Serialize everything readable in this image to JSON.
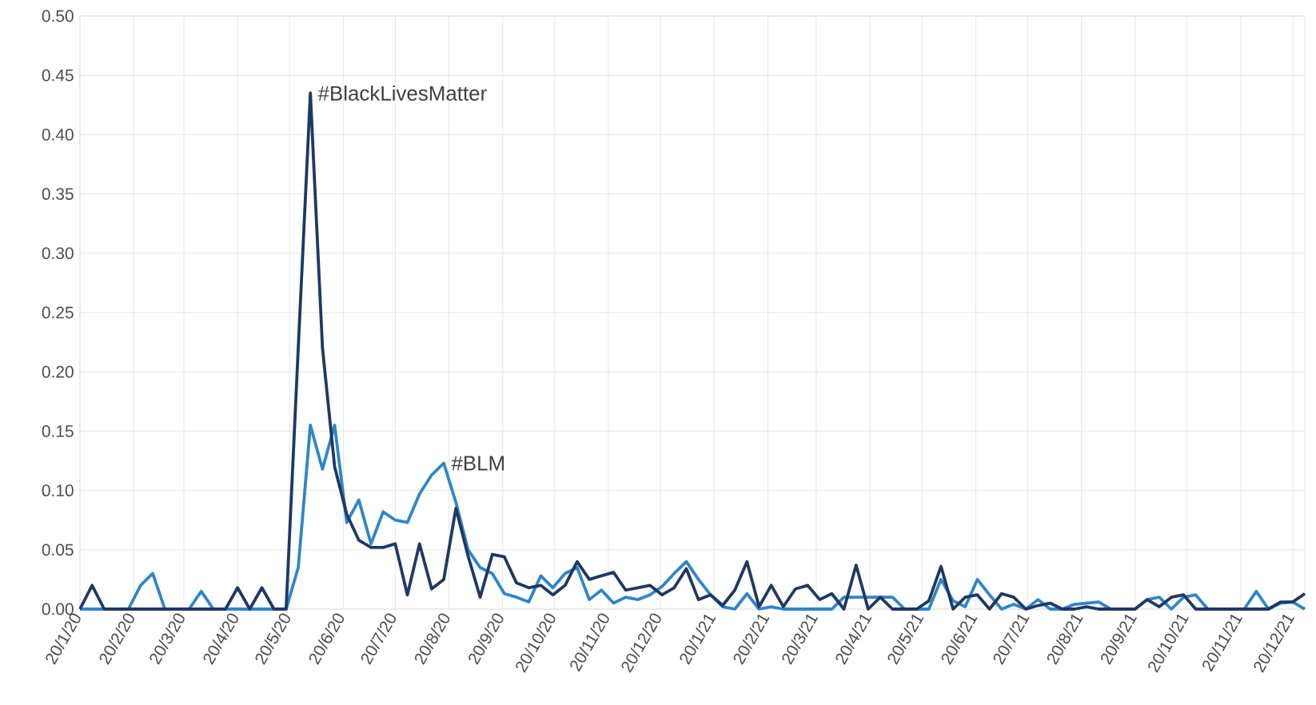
{
  "chart_data": {
    "type": "line",
    "x": [
      "2020-01-20",
      "2020-01-27",
      "2020-02-03",
      "2020-02-10",
      "2020-02-17",
      "2020-02-24",
      "2020-03-02",
      "2020-03-09",
      "2020-03-16",
      "2020-03-23",
      "2020-03-30",
      "2020-04-06",
      "2020-04-13",
      "2020-04-20",
      "2020-04-27",
      "2020-05-04",
      "2020-05-11",
      "2020-05-18",
      "2020-05-25",
      "2020-06-01",
      "2020-06-08",
      "2020-06-15",
      "2020-06-22",
      "2020-06-29",
      "2020-07-06",
      "2020-07-13",
      "2020-07-20",
      "2020-07-27",
      "2020-08-03",
      "2020-08-10",
      "2020-08-17",
      "2020-08-24",
      "2020-08-31",
      "2020-09-07",
      "2020-09-14",
      "2020-09-21",
      "2020-09-28",
      "2020-10-05",
      "2020-10-12",
      "2020-10-19",
      "2020-10-26",
      "2020-11-02",
      "2020-11-09",
      "2020-11-16",
      "2020-11-23",
      "2020-11-30",
      "2020-12-07",
      "2020-12-14",
      "2020-12-21",
      "2020-12-28",
      "2021-01-04",
      "2021-01-11",
      "2021-01-18",
      "2021-01-25",
      "2021-02-01",
      "2021-02-08",
      "2021-02-15",
      "2021-02-22",
      "2021-03-01",
      "2021-03-08",
      "2021-03-15",
      "2021-03-22",
      "2021-03-29",
      "2021-04-05",
      "2021-04-12",
      "2021-04-19",
      "2021-04-26",
      "2021-05-03",
      "2021-05-10",
      "2021-05-17",
      "2021-05-24",
      "2021-05-31",
      "2021-06-07",
      "2021-06-14",
      "2021-06-21",
      "2021-06-28",
      "2021-07-05",
      "2021-07-12",
      "2021-07-19",
      "2021-07-26",
      "2021-08-02",
      "2021-08-09",
      "2021-08-16",
      "2021-08-23",
      "2021-08-30",
      "2021-09-06",
      "2021-09-13",
      "2021-09-20",
      "2021-09-27",
      "2021-10-04",
      "2021-10-11",
      "2021-10-18",
      "2021-10-25",
      "2021-11-01",
      "2021-11-08",
      "2021-11-15",
      "2021-11-22",
      "2021-11-29",
      "2021-12-06",
      "2021-12-13",
      "2021-12-20",
      "2021-12-27"
    ],
    "series": [
      {
        "name": "#BLM",
        "color": "#2e86c8",
        "values": [
          0,
          0,
          0,
          0,
          0,
          0.02,
          0.03,
          0,
          0,
          0,
          0.015,
          0,
          0,
          0,
          0,
          0,
          0,
          0,
          0.035,
          0.155,
          0.118,
          0.155,
          0.073,
          0.092,
          0.055,
          0.082,
          0.075,
          0.073,
          0.097,
          0.113,
          0.123,
          0.09,
          0.05,
          0.035,
          0.03,
          0.013,
          0.01,
          0.006,
          0.028,
          0.018,
          0.03,
          0.035,
          0.008,
          0.016,
          0.005,
          0.01,
          0.008,
          0.012,
          0.019,
          0.03,
          0.04,
          0.025,
          0.012,
          0.002,
          0,
          0.013,
          0,
          0.002,
          0,
          0,
          0,
          0,
          0,
          0.01,
          0.01,
          0.01,
          0.01,
          0.01,
          0,
          0,
          0,
          0.025,
          0.007,
          0.002,
          0.025,
          0.012,
          0,
          0.004,
          0,
          0.008,
          0,
          0,
          0.004,
          0.005,
          0.006,
          0,
          0,
          0,
          0.008,
          0.01,
          0,
          0.01,
          0.012,
          0,
          0,
          0,
          0,
          0.015,
          0,
          0.005,
          0.006,
          0
        ]
      },
      {
        "name": "#BlackLivesMatter",
        "color": "#1f3864",
        "values": [
          0,
          0.02,
          0,
          0,
          0,
          0,
          0,
          0,
          0,
          0,
          0,
          0,
          0,
          0.018,
          0,
          0.018,
          0,
          0,
          0.22,
          0.435,
          0.22,
          0.12,
          0.08,
          0.058,
          0.052,
          0.052,
          0.055,
          0.012,
          0.055,
          0.017,
          0.025,
          0.085,
          0.045,
          0.01,
          0.046,
          0.044,
          0.022,
          0.018,
          0.02,
          0.012,
          0.02,
          0.04,
          0.025,
          0.028,
          0.031,
          0.016,
          0.018,
          0.02,
          0.012,
          0.018,
          0.034,
          0.008,
          0.012,
          0.003,
          0.016,
          0.04,
          0.002,
          0.02,
          0.002,
          0.017,
          0.02,
          0.008,
          0.013,
          0,
          0.037,
          0,
          0.01,
          0,
          0,
          0,
          0.007,
          0.036,
          0,
          0.01,
          0.012,
          0,
          0.013,
          0.01,
          0,
          0.003,
          0.005,
          0,
          0,
          0.002,
          0,
          0,
          0,
          0,
          0.008,
          0.002,
          0.01,
          0.012,
          0,
          0,
          0,
          0,
          0,
          0,
          0,
          0.006,
          0.006,
          0.013
        ]
      }
    ],
    "xlim": [
      "2020-01-20",
      "2021-12-27"
    ],
    "ylim": [
      0,
      0.5
    ],
    "xticks": [
      {
        "value": "2020-01-20",
        "label": "20/1/20"
      },
      {
        "value": "2020-02-20",
        "label": "20/2/20"
      },
      {
        "value": "2020-03-20",
        "label": "20/3/20"
      },
      {
        "value": "2020-04-20",
        "label": "20/4/20"
      },
      {
        "value": "2020-05-20",
        "label": "20/5/20"
      },
      {
        "value": "2020-06-20",
        "label": "20/6/20"
      },
      {
        "value": "2020-07-20",
        "label": "20/7/20"
      },
      {
        "value": "2020-08-20",
        "label": "20/8/20"
      },
      {
        "value": "2020-09-20",
        "label": "20/9/20"
      },
      {
        "value": "2020-10-20",
        "label": "20/10/20"
      },
      {
        "value": "2020-11-20",
        "label": "20/11/20"
      },
      {
        "value": "2020-12-20",
        "label": "20/12/20"
      },
      {
        "value": "2021-01-20",
        "label": "20/1/21"
      },
      {
        "value": "2021-02-20",
        "label": "20/2/21"
      },
      {
        "value": "2021-03-20",
        "label": "20/3/21"
      },
      {
        "value": "2021-04-20",
        "label": "20/4/21"
      },
      {
        "value": "2021-05-20",
        "label": "20/5/21"
      },
      {
        "value": "2021-06-20",
        "label": "20/6/21"
      },
      {
        "value": "2021-07-20",
        "label": "20/7/21"
      },
      {
        "value": "2021-08-20",
        "label": "20/8/21"
      },
      {
        "value": "2021-09-20",
        "label": "20/9/21"
      },
      {
        "value": "2021-10-20",
        "label": "20/10/21"
      },
      {
        "value": "2021-11-20",
        "label": "20/11/21"
      },
      {
        "value": "2021-12-20",
        "label": "20/12/21"
      }
    ],
    "yticks": [
      {
        "value": 0,
        "label": "0.00"
      },
      {
        "value": 0.05,
        "label": "0.05"
      },
      {
        "value": 0.1,
        "label": "0.10"
      },
      {
        "value": 0.15,
        "label": "0.15"
      },
      {
        "value": 0.2,
        "label": "0.20"
      },
      {
        "value": 0.25,
        "label": "0.25"
      },
      {
        "value": 0.3,
        "label": "0.30"
      },
      {
        "value": 0.35,
        "label": "0.35"
      },
      {
        "value": 0.4,
        "label": "0.40"
      },
      {
        "value": 0.45,
        "label": "0.45"
      },
      {
        "value": 0.5,
        "label": "0.50"
      }
    ],
    "grid": true,
    "legend": false
  }
}
